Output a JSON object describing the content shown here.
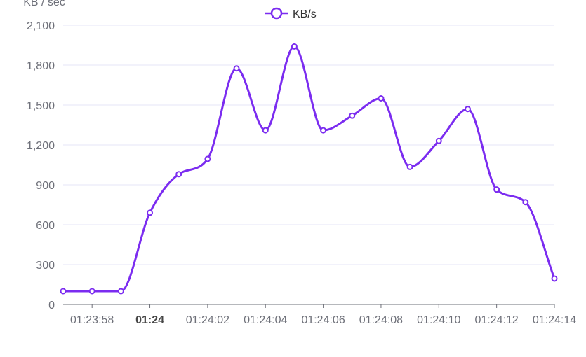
{
  "chart_data": {
    "type": "line",
    "y_axis_title": "KB / sec",
    "legend": [
      "KB/s"
    ],
    "legend_position": "top-center",
    "ylim": [
      0,
      2100
    ],
    "y_ticks": [
      0,
      300,
      600,
      900,
      1200,
      1500,
      1800,
      2100
    ],
    "y_tick_labels": [
      "0",
      "300",
      "600",
      "900",
      "1,200",
      "1,500",
      "1,800",
      "2,100"
    ],
    "x_tick_labels": [
      "01:23:58",
      "01:24",
      "01:24:02",
      "01:24:04",
      "01:24:06",
      "01:24:08",
      "01:24:10",
      "01:24:12",
      "01:24:14"
    ],
    "x_tick_bold": [
      false,
      true,
      false,
      false,
      false,
      false,
      false,
      false,
      false
    ],
    "x": [
      "01:23:57",
      "01:23:58",
      "01:23:59",
      "01:24:00",
      "01:24:01",
      "01:24:02",
      "01:24:03",
      "01:24:04",
      "01:24:05",
      "01:24:06",
      "01:24:07",
      "01:24:08",
      "01:24:09",
      "01:24:10",
      "01:24:11",
      "01:24:12",
      "01:24:13",
      "01:24:14"
    ],
    "series": [
      {
        "name": "KB/s",
        "values": [
          100,
          100,
          100,
          690,
          980,
          1095,
          1775,
          1310,
          1940,
          1310,
          1420,
          1550,
          1035,
          1230,
          1470,
          865,
          770,
          195
        ]
      }
    ],
    "grid": true,
    "colors": {
      "series": "#7b2cf0",
      "grid": "#e6e6f7",
      "axis": "#6e7079",
      "text": "#6e7079"
    }
  }
}
